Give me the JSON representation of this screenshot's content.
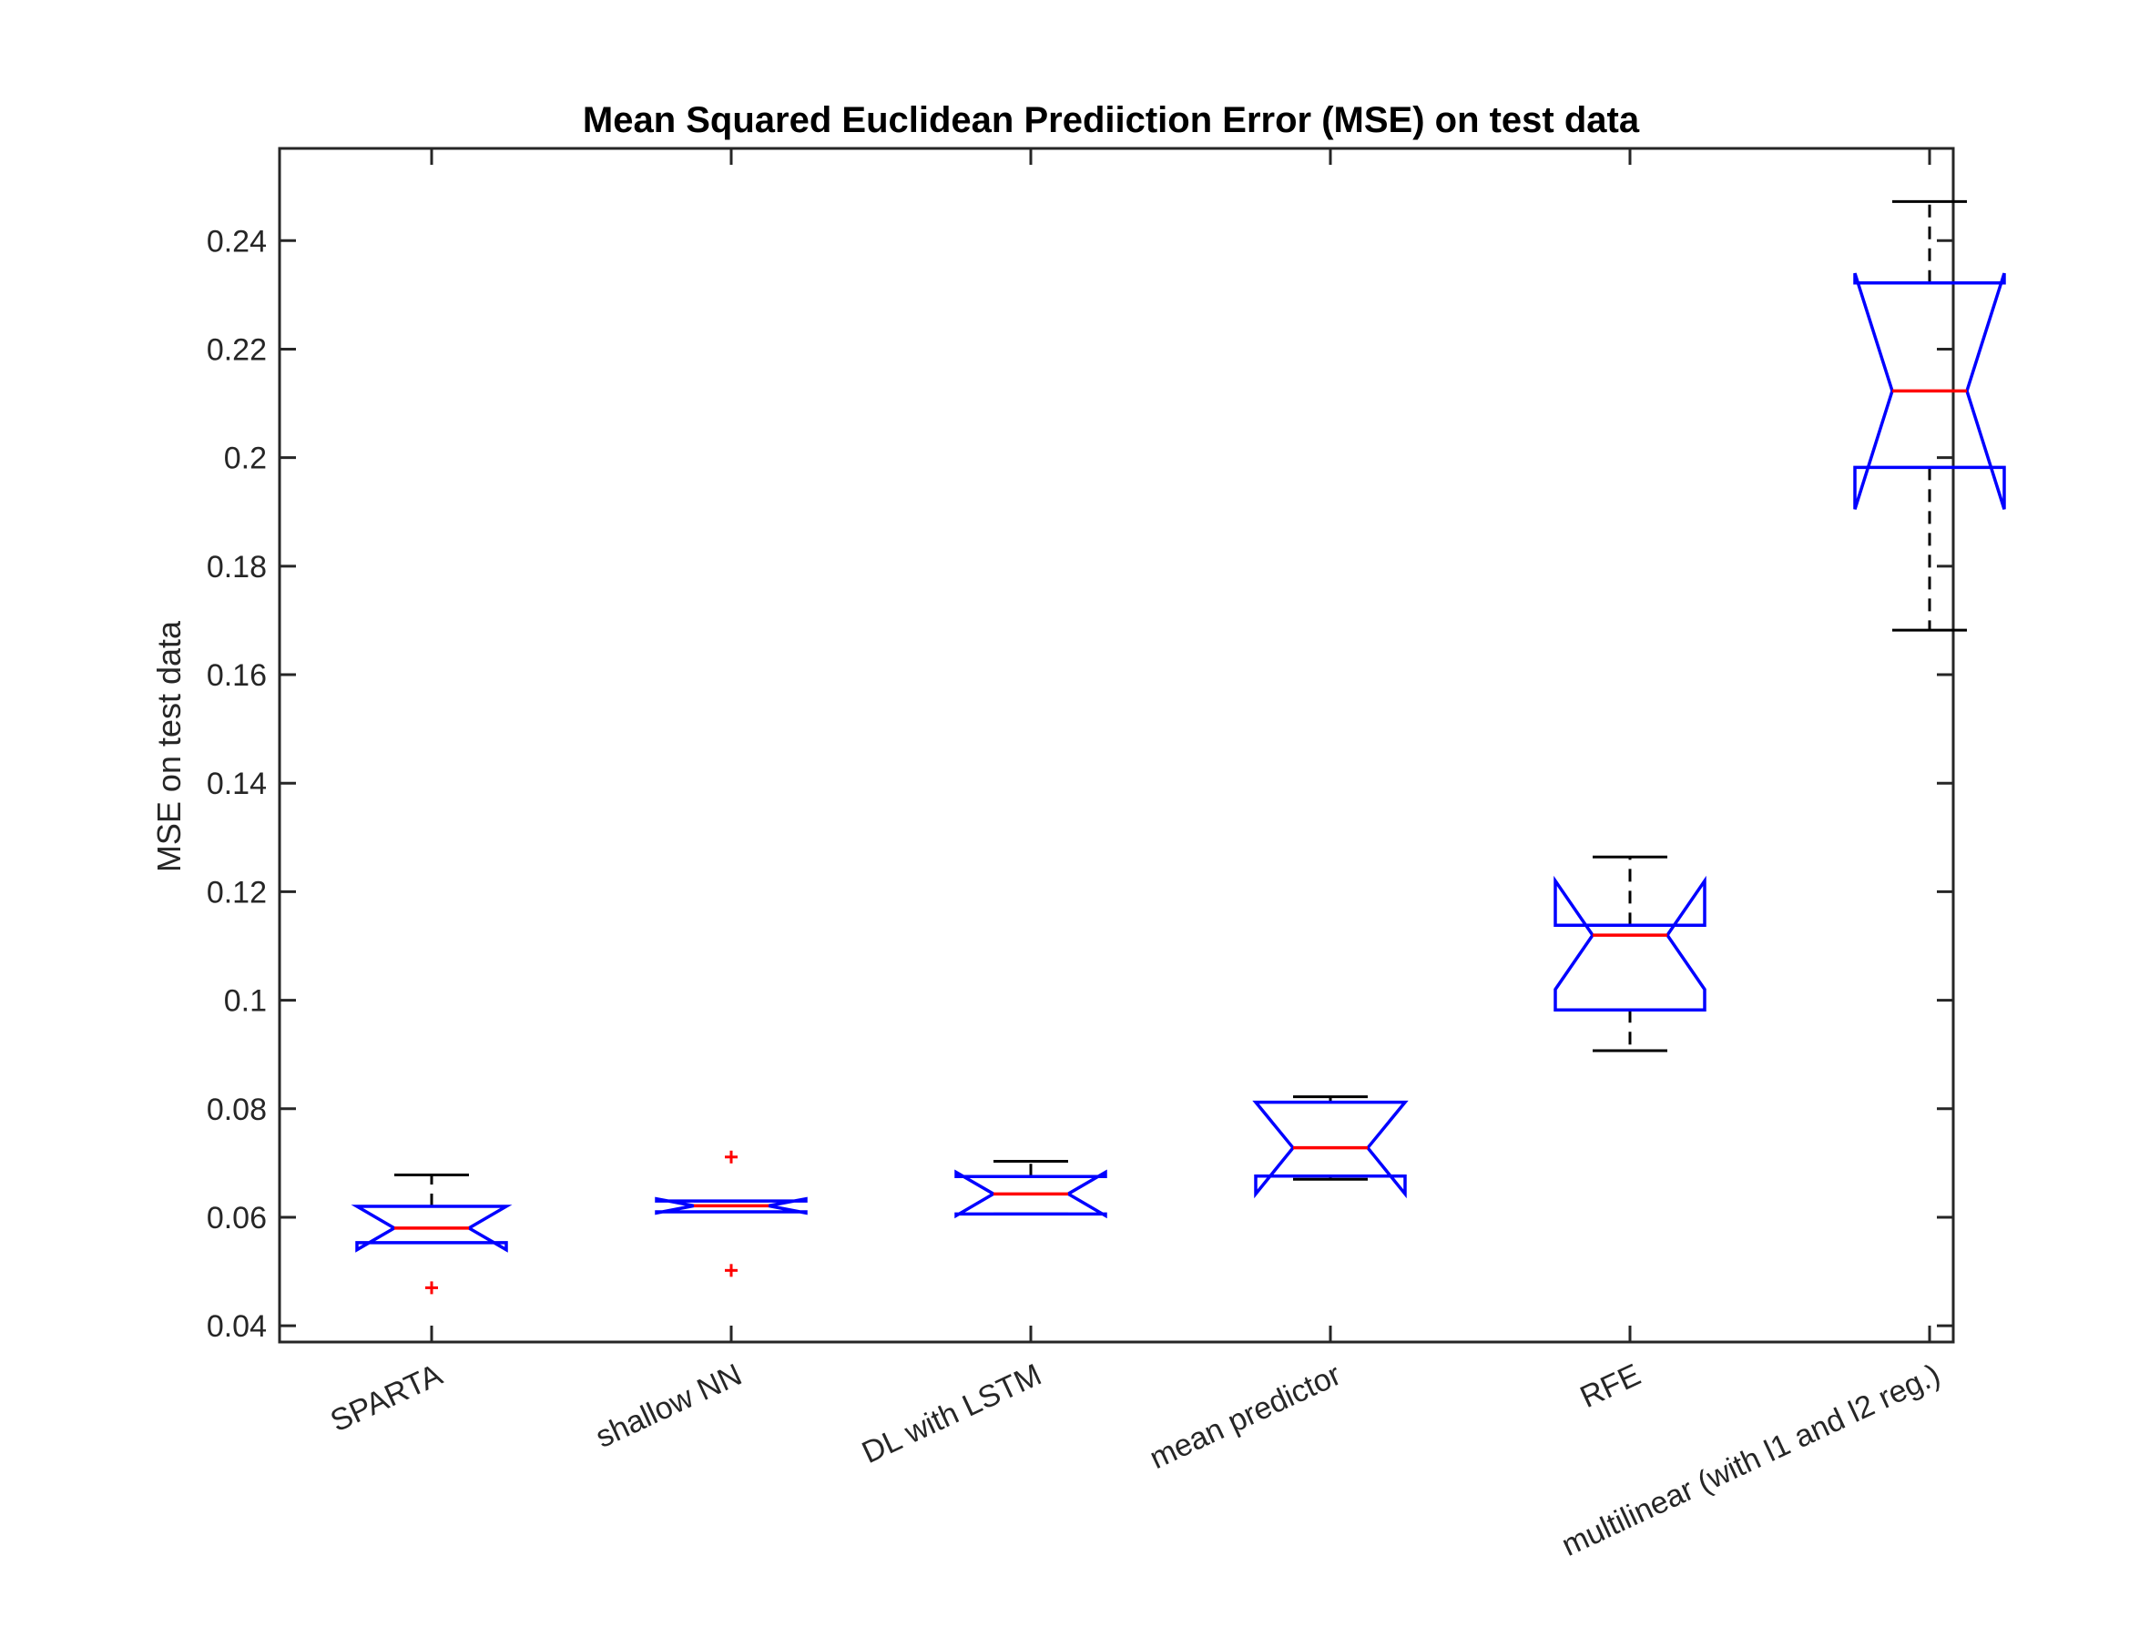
{
  "chart_data": {
    "type": "boxplot",
    "title": "Mean Squared Euclidean Prediiction Error (MSE) on test data",
    "xlabel": "",
    "ylabel": "MSE on test data",
    "ylim": [
      0.037,
      0.257
    ],
    "yticks": [
      0.04,
      0.06,
      0.08,
      0.1,
      0.12,
      0.14,
      0.16,
      0.18,
      0.2,
      0.22,
      0.24
    ],
    "ytick_labels": [
      "0.04",
      "0.06",
      "0.08",
      "0.1",
      "0.12",
      "0.14",
      "0.16",
      "0.18",
      "0.2",
      "0.22",
      "0.24"
    ],
    "categories": [
      "SPARTA",
      "shallow NN",
      "DL with LSTM",
      "mean predictor",
      "RFE",
      "multilinear (with l1 and l2 reg.)"
    ],
    "notched": true,
    "grid": false,
    "boxes": [
      {
        "q1": 0.0553,
        "median": 0.058,
        "q3": 0.062,
        "notch_low": 0.054,
        "notch_high": 0.062,
        "whisker_low": 0.0553,
        "whisker_high": 0.0678,
        "outliers": [
          0.047
        ]
      },
      {
        "q1": 0.061,
        "median": 0.0621,
        "q3": 0.063,
        "notch_low": 0.0608,
        "notch_high": 0.0634,
        "whisker_low": 0.061,
        "whisker_high": 0.063,
        "outliers": [
          0.0711,
          0.0502
        ]
      },
      {
        "q1": 0.0606,
        "median": 0.0643,
        "q3": 0.0675,
        "notch_low": 0.0603,
        "notch_high": 0.0683,
        "whisker_low": 0.0606,
        "whisker_high": 0.0703,
        "outliers": []
      },
      {
        "q1": 0.0676,
        "median": 0.0728,
        "q3": 0.0812,
        "notch_low": 0.0643,
        "notch_high": 0.0812,
        "whisker_low": 0.067,
        "whisker_high": 0.0822,
        "outliers": []
      },
      {
        "q1": 0.0982,
        "median": 0.112,
        "q3": 0.1138,
        "notch_low": 0.102,
        "notch_high": 0.122,
        "whisker_low": 0.0907,
        "whisker_high": 0.1264,
        "outliers": []
      },
      {
        "q1": 0.1982,
        "median": 0.2123,
        "q3": 0.2322,
        "notch_low": 0.1905,
        "notch_high": 0.234,
        "whisker_low": 0.1682,
        "whisker_high": 0.2472,
        "outliers": []
      }
    ],
    "colors": {
      "box": "#0000ff",
      "median": "#ff0000",
      "whisker": "#000000",
      "outlier": "#ff0000",
      "axis": "#262626"
    }
  }
}
